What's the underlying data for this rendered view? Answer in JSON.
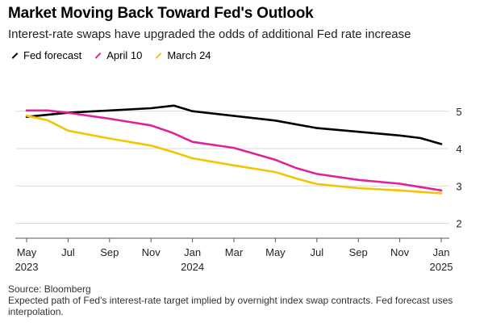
{
  "chart_data": {
    "type": "line",
    "title": "Market Moving Back Toward Fed's Outlook",
    "subtitle": "Interest-rate swaps have upgraded the odds of additional Fed rate increase",
    "x_months": [
      "2023-05",
      "2023-06",
      "2023-07",
      "2023-08",
      "2023-09",
      "2023-10",
      "2023-11",
      "2023-12",
      "2024-01",
      "2024-02",
      "2024-03",
      "2024-04",
      "2024-05",
      "2024-06",
      "2024-07",
      "2024-08",
      "2024-09",
      "2024-10",
      "2024-11",
      "2024-12",
      "2025-01"
    ],
    "x_ticks": [
      {
        "label": "May",
        "year": "2023",
        "index": 0
      },
      {
        "label": "Jul",
        "year": "",
        "index": 2
      },
      {
        "label": "Sep",
        "year": "",
        "index": 4
      },
      {
        "label": "Nov",
        "year": "",
        "index": 6
      },
      {
        "label": "Jan",
        "year": "2024",
        "index": 8
      },
      {
        "label": "Mar",
        "year": "",
        "index": 10
      },
      {
        "label": "May",
        "year": "",
        "index": 12
      },
      {
        "label": "Jul",
        "year": "",
        "index": 14
      },
      {
        "label": "Sep",
        "year": "",
        "index": 16
      },
      {
        "label": "Nov",
        "year": "",
        "index": 18
      },
      {
        "label": "Jan",
        "year": "2025",
        "index": 20
      }
    ],
    "y_ticks": [
      2,
      3,
      4,
      5
    ],
    "ylim": [
      1.6,
      5.6
    ],
    "series": [
      {
        "name": "Fed forecast",
        "color": "#000000",
        "points": [
          [
            0,
            4.85
          ],
          [
            2,
            4.96
          ],
          [
            6,
            5.08
          ],
          [
            7.1,
            5.15
          ],
          [
            8,
            5.0
          ],
          [
            12,
            4.75
          ],
          [
            14,
            4.55
          ],
          [
            16,
            4.45
          ],
          [
            18,
            4.35
          ],
          [
            19,
            4.28
          ],
          [
            20,
            4.12
          ]
        ]
      },
      {
        "name": "April 10",
        "color": "#e0229b",
        "points": [
          [
            0,
            5.02
          ],
          [
            1,
            5.02
          ],
          [
            2,
            4.96
          ],
          [
            4,
            4.8
          ],
          [
            6,
            4.62
          ],
          [
            7,
            4.43
          ],
          [
            8,
            4.18
          ],
          [
            10,
            4.02
          ],
          [
            12,
            3.7
          ],
          [
            13,
            3.48
          ],
          [
            14,
            3.32
          ],
          [
            16,
            3.16
          ],
          [
            18,
            3.06
          ],
          [
            20,
            2.88
          ]
        ]
      },
      {
        "name": "March 24",
        "color": "#f2c500",
        "points": [
          [
            0,
            4.88
          ],
          [
            1,
            4.76
          ],
          [
            2,
            4.48
          ],
          [
            4,
            4.27
          ],
          [
            6,
            4.08
          ],
          [
            7,
            3.92
          ],
          [
            8,
            3.74
          ],
          [
            10,
            3.55
          ],
          [
            12,
            3.37
          ],
          [
            13,
            3.2
          ],
          [
            14,
            3.05
          ],
          [
            16,
            2.94
          ],
          [
            18,
            2.88
          ],
          [
            20,
            2.8
          ]
        ]
      }
    ],
    "legend": [
      {
        "label": "Fed forecast",
        "color": "#000000"
      },
      {
        "label": "April 10",
        "color": "#e0229b"
      },
      {
        "label": "March 24",
        "color": "#f2c500"
      }
    ],
    "grid": true,
    "legend_position": "top-left"
  },
  "footer": {
    "source": "Source: Bloomberg",
    "note": "Expected path of Fed's interest-rate target implied by overnight index swap contracts. Fed forecast uses interpolation."
  }
}
